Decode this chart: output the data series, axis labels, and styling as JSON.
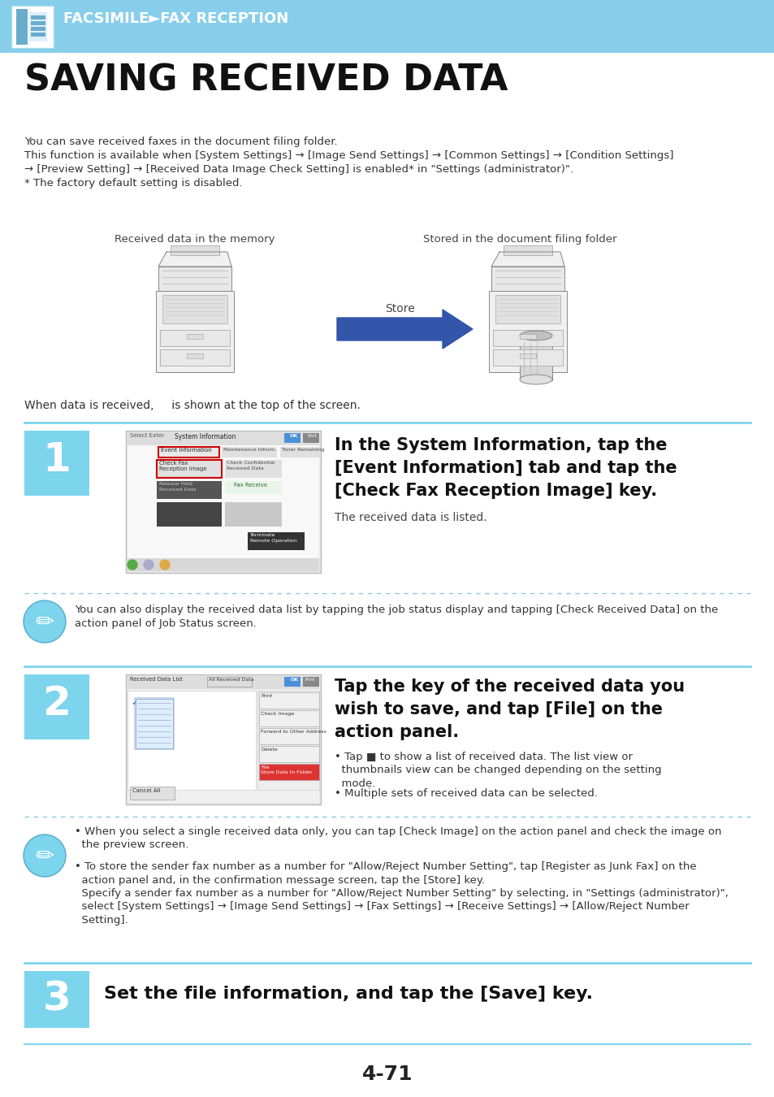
{
  "bg_color": "#ffffff",
  "header_bg": "#87ceeb",
  "header_text": "FACSIMILE►FAX RECEPTION",
  "header_text_color": "#ffffff",
  "title": "SAVING RECEIVED DATA",
  "intro_lines": [
    "You can save received faxes in the document filing folder.",
    "This function is available when [System Settings] → [Image Send Settings] → [Common Settings] → [Condition Settings]",
    "→ [Preview Setting] → [Received Data Image Check Setting] is enabled* in \"Settings (administrator)\".",
    "* The factory default setting is disabled."
  ],
  "label_left": "Received data in the memory",
  "label_right": "Stored in the document filing folder",
  "store_label": "Store",
  "when_line": "When data is received,     is shown at the top of the screen.",
  "step1_num": "1",
  "step1_title": "In the System Information, tap the\n[Event Information] tab and tap the\n[Check Fax Reception Image] key.",
  "step1_sub": "The received data is listed.",
  "step1_note": "You can also display the received data list by tapping the job status display and tapping [Check Received Data] on the\naction panel of Job Status screen.",
  "step2_num": "2",
  "step2_title": "Tap the key of the received data you\nwish to save, and tap [File] on the\naction panel.",
  "step2_b1": "• Tap ■ to show a list of received data. The list view or\n  thumbnails view can be changed depending on the setting\n  mode.",
  "step2_b2": "• Multiple sets of received data can be selected.",
  "step2_note_b1": "• When you select a single received data only, you can tap [Check Image] on the action panel and check the image on\n  the preview screen.",
  "step2_note_b2": "• To store the sender fax number as a number for \"Allow/Reject Number Setting\", tap [Register as Junk Fax] on the\n  action panel and, in the confirmation message screen, tap the [Store] key.\n  Specify a sender fax number as a number for \"Allow/Reject Number Setting\" by selecting, in \"Settings (administrator)\",\n  select [System Settings] → [Image Send Settings] → [Fax Settings] → [Receive Settings] → [Allow/Reject Number\n  Setting].",
  "step3_num": "3",
  "step3_title": "Set the file information, and tap the [Save] key.",
  "page_number": "4-71",
  "step_box_color": "#7dd4ed",
  "step_text_color": "#ffffff",
  "divider_color": "#7dd4ed",
  "note_icon_color": "#7dd4ed",
  "arrow_color": "#3355aa",
  "dashed_color": "#88ccdd"
}
